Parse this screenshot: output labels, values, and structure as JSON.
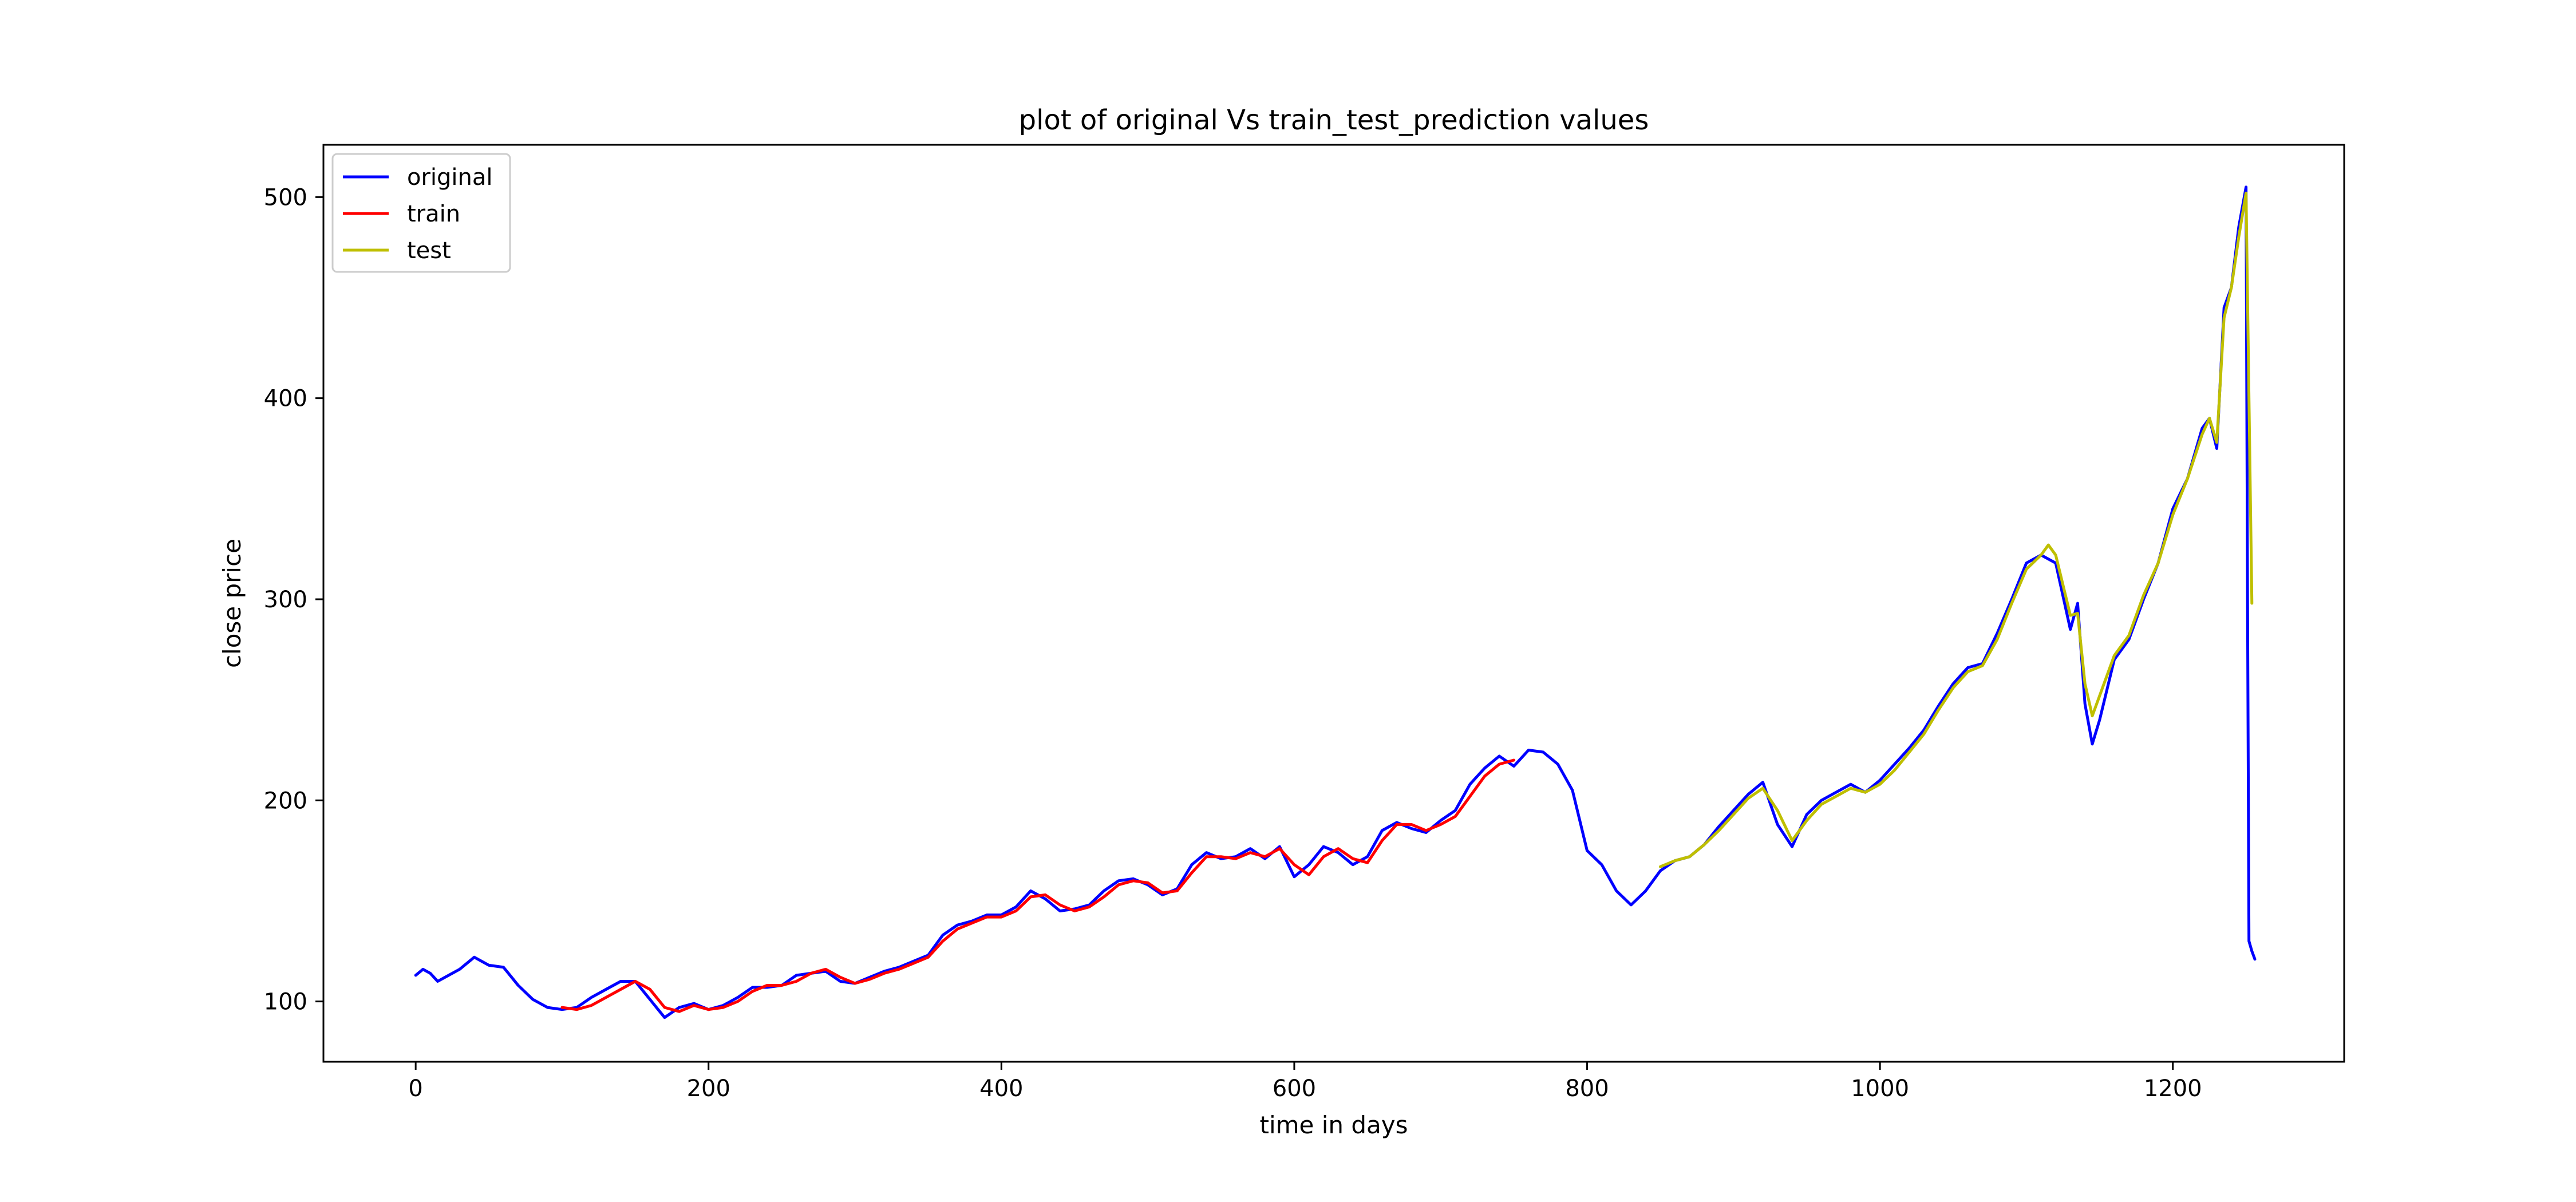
{
  "chart_data": {
    "type": "line",
    "title": "plot of original Vs train_test_prediction values",
    "xlabel": "time in days",
    "ylabel": "close price",
    "xlim": [
      -63,
      1317
    ],
    "ylim": [
      70,
      526
    ],
    "xticks": [
      0,
      200,
      400,
      600,
      800,
      1000,
      1200
    ],
    "yticks": [
      100,
      200,
      300,
      400,
      500
    ],
    "grid": false,
    "legend_position": "top-left",
    "series": [
      {
        "name": "original",
        "color": "#0000ff",
        "x": [
          0,
          5,
          10,
          15,
          20,
          30,
          40,
          50,
          60,
          70,
          80,
          90,
          100,
          110,
          120,
          130,
          140,
          150,
          160,
          170,
          180,
          190,
          200,
          210,
          220,
          230,
          240,
          250,
          260,
          270,
          280,
          290,
          300,
          310,
          320,
          330,
          340,
          350,
          360,
          370,
          380,
          390,
          400,
          410,
          420,
          430,
          440,
          450,
          460,
          470,
          480,
          490,
          500,
          510,
          520,
          530,
          540,
          550,
          560,
          570,
          580,
          590,
          600,
          610,
          620,
          630,
          640,
          650,
          660,
          670,
          680,
          690,
          700,
          710,
          720,
          730,
          740,
          750,
          760,
          770,
          780,
          790,
          800,
          810,
          820,
          830,
          840,
          850,
          860,
          870,
          880,
          890,
          900,
          910,
          920,
          930,
          940,
          950,
          960,
          970,
          980,
          990,
          1000,
          1010,
          1020,
          1030,
          1040,
          1050,
          1060,
          1070,
          1080,
          1090,
          1100,
          1110,
          1120,
          1130,
          1135,
          1140,
          1145,
          1150,
          1160,
          1170,
          1180,
          1190,
          1200,
          1210,
          1220,
          1225,
          1230,
          1235,
          1240,
          1245,
          1250,
          1251,
          1252,
          1254,
          1256
        ],
        "values": [
          113,
          116,
          114,
          110,
          112,
          116,
          122,
          118,
          117,
          108,
          101,
          97,
          96,
          97,
          102,
          106,
          110,
          110,
          101,
          92,
          97,
          99,
          96,
          98,
          102,
          107,
          107,
          108,
          113,
          114,
          115,
          110,
          109,
          112,
          115,
          117,
          120,
          123,
          133,
          138,
          140,
          143,
          143,
          147,
          155,
          151,
          145,
          146,
          148,
          155,
          160,
          161,
          158,
          153,
          156,
          168,
          174,
          171,
          172,
          176,
          171,
          177,
          162,
          168,
          177,
          174,
          168,
          172,
          185,
          189,
          186,
          184,
          190,
          195,
          208,
          216,
          222,
          217,
          225,
          224,
          218,
          205,
          175,
          168,
          155,
          148,
          155,
          165,
          170,
          172,
          178,
          187,
          195,
          203,
          209,
          188,
          177,
          193,
          200,
          204,
          208,
          204,
          210,
          218,
          226,
          235,
          247,
          258,
          266,
          268,
          283,
          300,
          318,
          322,
          318,
          285,
          298,
          248,
          228,
          240,
          270,
          280,
          300,
          318,
          345,
          360,
          385,
          390,
          375,
          445,
          455,
          485,
          505,
          300,
          130,
          125,
          121
        ]
      },
      {
        "name": "train",
        "color": "#ff0000",
        "x": [
          100,
          110,
          120,
          130,
          140,
          150,
          160,
          170,
          180,
          190,
          200,
          210,
          220,
          230,
          240,
          250,
          260,
          270,
          280,
          290,
          300,
          310,
          320,
          330,
          340,
          350,
          360,
          370,
          380,
          390,
          400,
          410,
          420,
          430,
          440,
          450,
          460,
          470,
          480,
          490,
          500,
          510,
          520,
          530,
          540,
          550,
          560,
          570,
          580,
          590,
          600,
          610,
          620,
          630,
          640,
          650,
          660,
          670,
          680,
          690,
          700,
          710,
          720,
          730,
          740,
          750
        ],
        "values": [
          97,
          96,
          98,
          102,
          106,
          110,
          106,
          97,
          95,
          98,
          96,
          97,
          100,
          105,
          108,
          108,
          110,
          114,
          116,
          112,
          109,
          111,
          114,
          116,
          119,
          122,
          130,
          136,
          139,
          142,
          142,
          145,
          152,
          153,
          148,
          145,
          147,
          152,
          158,
          160,
          159,
          154,
          155,
          164,
          172,
          172,
          171,
          174,
          172,
          176,
          168,
          163,
          172,
          176,
          171,
          169,
          180,
          188,
          188,
          185,
          188,
          192,
          202,
          212,
          218,
          220
        ]
      },
      {
        "name": "test",
        "color": "#bfbf00",
        "x": [
          850,
          860,
          870,
          880,
          890,
          900,
          910,
          920,
          930,
          940,
          950,
          960,
          970,
          980,
          990,
          1000,
          1010,
          1020,
          1030,
          1040,
          1050,
          1060,
          1070,
          1080,
          1090,
          1100,
          1110,
          1115,
          1120,
          1130,
          1135,
          1140,
          1145,
          1150,
          1160,
          1170,
          1180,
          1190,
          1200,
          1210,
          1220,
          1225,
          1230,
          1235,
          1240,
          1245,
          1250,
          1252,
          1254
        ],
        "values": [
          167,
          170,
          172,
          178,
          185,
          193,
          201,
          206,
          195,
          180,
          190,
          198,
          202,
          206,
          204,
          208,
          215,
          224,
          233,
          245,
          256,
          264,
          267,
          280,
          298,
          315,
          322,
          327,
          322,
          292,
          293,
          258,
          242,
          252,
          272,
          282,
          302,
          318,
          342,
          360,
          382,
          390,
          378,
          440,
          455,
          480,
          502,
          400,
          298
        ]
      }
    ]
  }
}
